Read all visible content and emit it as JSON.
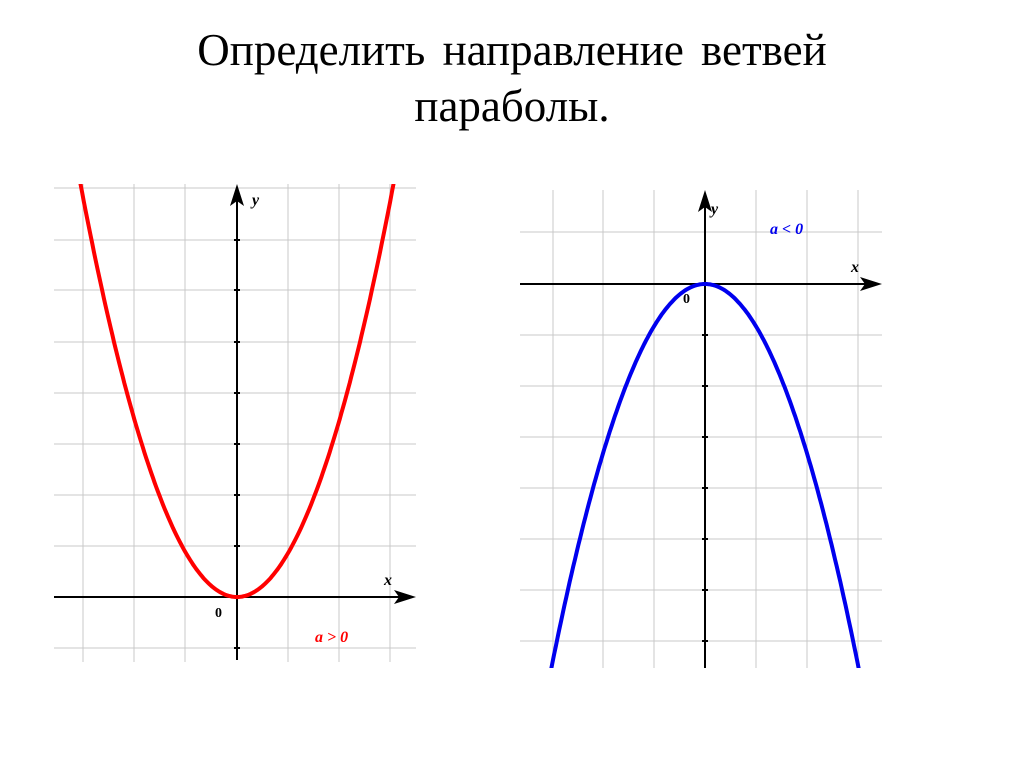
{
  "title": {
    "line1": "Определить  направление  ветвей",
    "line2": "параболы."
  },
  "colors": {
    "left_curve": "#ff0000",
    "right_curve": "#0000ee",
    "grid": "#c8c8c8",
    "axis": "#000000"
  },
  "graphs": [
    {
      "axis_x_label": "x",
      "axis_y_label": "y",
      "origin_label": "0",
      "condition": "a > 0",
      "direction": "up"
    },
    {
      "axis_x_label": "x",
      "axis_y_label": "y",
      "origin_label": "0",
      "condition": "a < 0",
      "direction": "down"
    }
  ]
}
